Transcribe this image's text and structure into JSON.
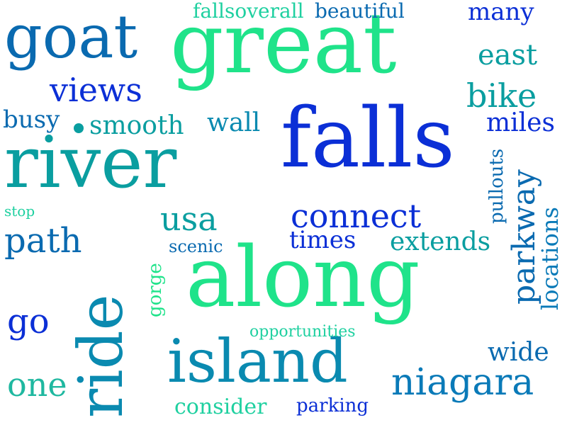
{
  "colors": {
    "background": "#ffffff",
    "palette": [
      "#1fe38a",
      "#0a9ea0",
      "#0a6ab0",
      "#0b2fd6",
      "#1a55c8"
    ]
  },
  "words": [
    {
      "id": "great",
      "text": "great",
      "color": "#1fe38a"
    },
    {
      "id": "falls",
      "text": "falls",
      "color": "#0b2fd6"
    },
    {
      "id": "along",
      "text": "along",
      "color": "#1fe38a"
    },
    {
      "id": "river",
      "text": "river",
      "color": "#0a9ea0"
    },
    {
      "id": "island",
      "text": "island",
      "color": "#0a8ab0"
    },
    {
      "id": "ride",
      "text": "ride",
      "color": "#0a8ab0"
    },
    {
      "id": "goat",
      "text": "goat",
      "color": "#0a6ab0"
    },
    {
      "id": "niagara",
      "text": "niagara",
      "color": "#0a7ab8"
    },
    {
      "id": "connect",
      "text": "connect",
      "color": "#0b2fd6"
    },
    {
      "id": "parkway",
      "text": "parkway",
      "color": "#0a6ab0"
    },
    {
      "id": "views",
      "text": "views",
      "color": "#0b2fd6"
    },
    {
      "id": "east",
      "text": "east",
      "color": "#0a9ea0"
    },
    {
      "id": "bike",
      "text": "bike",
      "color": "#0a9ea0"
    },
    {
      "id": "usa",
      "text": "usa",
      "color": "#0a9ea0"
    },
    {
      "id": "path",
      "text": "path",
      "color": "#0a6ab0"
    },
    {
      "id": "smooth",
      "text": "smooth",
      "color": "#0a9ea0"
    },
    {
      "id": "many",
      "text": "many",
      "color": "#0b2fd6"
    },
    {
      "id": "extends",
      "text": "extends",
      "color": "#0a9ea0"
    },
    {
      "id": "one",
      "text": "one",
      "color": "#1fb8a0"
    },
    {
      "id": "go",
      "text": "go",
      "color": "#0b2fd6"
    },
    {
      "id": "wide",
      "text": "wide",
      "color": "#0a6ab0"
    },
    {
      "id": "miles",
      "text": "miles",
      "color": "#0b2fd6"
    },
    {
      "id": "busy",
      "text": "busy",
      "color": "#0a6ab0"
    },
    {
      "id": "wall",
      "text": "wall",
      "color": "#0a8ab0"
    },
    {
      "id": "times",
      "text": "times",
      "color": "#0b2fd6"
    },
    {
      "id": "locations",
      "text": "locations",
      "color": "#0a7ab8"
    },
    {
      "id": "consider",
      "text": "consider",
      "color": "#1fd0a0"
    },
    {
      "id": "gorge",
      "text": "gorge",
      "color": "#1fe38a"
    },
    {
      "id": "beautiful",
      "text": "beautiful",
      "color": "#0a6ab0"
    },
    {
      "id": "fallsoverall",
      "text": "fallsoverall",
      "color": "#1fd0a0"
    },
    {
      "id": "scenic",
      "text": "scenic",
      "color": "#0a6ab0"
    },
    {
      "id": "parking",
      "text": "parking",
      "color": "#0b2fd6"
    },
    {
      "id": "pullouts",
      "text": "pullouts",
      "color": "#0a6ab0"
    },
    {
      "id": "opportunities",
      "text": "opportunities",
      "color": "#1fd0a0"
    },
    {
      "id": "stop",
      "text": "stop",
      "color": "#1fd0a0"
    }
  ],
  "dot": {
    "color": "#0a9ea0"
  }
}
